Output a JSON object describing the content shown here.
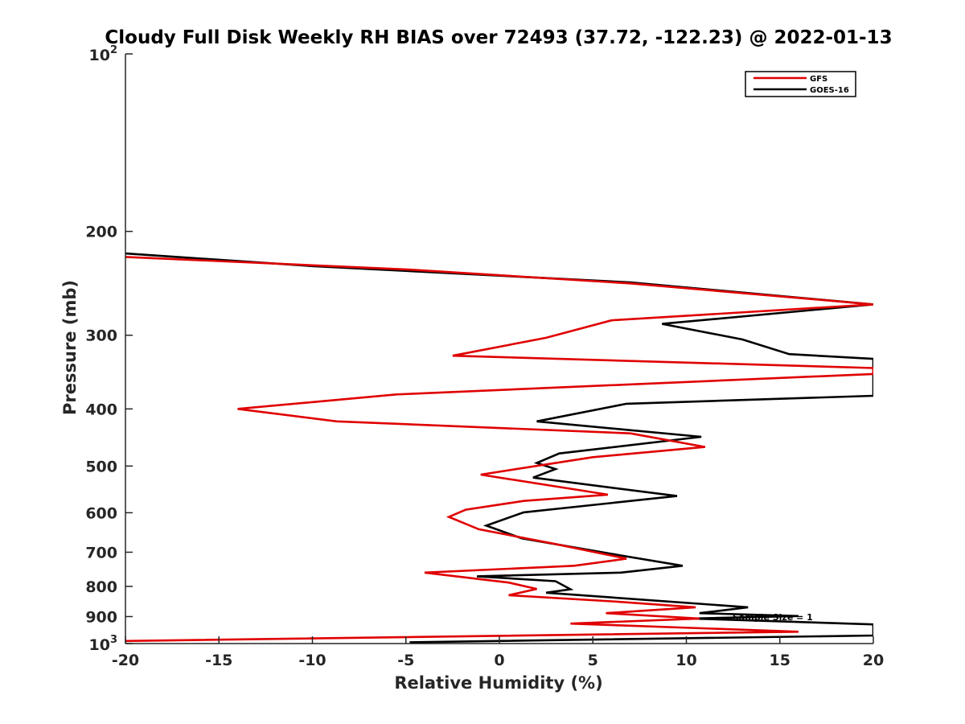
{
  "chart_data": {
    "type": "line",
    "title": "Cloudy Full Disk Weekly RH BIAS over 72493 (37.72, -122.23) @ 2022-01-13",
    "xlabel": "Relative Humidity (%)",
    "ylabel": "Pressure (mb)",
    "xlim": [
      -20,
      20
    ],
    "ylim": [
      100,
      1000
    ],
    "yscale": "log",
    "y_reversed": true,
    "grid": false,
    "legend_position": "top-right",
    "x_ticks": [
      "-20",
      "-15",
      "-10",
      "-5",
      "0",
      "5",
      "10",
      "15",
      "20"
    ],
    "y_ticks": [
      {
        "label": "200",
        "value": 200
      },
      {
        "label": "300",
        "value": 300
      },
      {
        "label": "400",
        "value": 400
      },
      {
        "label": "500",
        "value": 500
      },
      {
        "label": "600",
        "value": 600
      },
      {
        "label": "700",
        "value": 700
      },
      {
        "label": "800",
        "value": 800
      },
      {
        "label": "900",
        "value": 900
      }
    ],
    "y_tick_powers": [
      {
        "base": "10",
        "exp": "2",
        "value": 100
      },
      {
        "base": "10",
        "exp": "3",
        "value": 1000
      }
    ],
    "annotation": "Sample Size = 1",
    "series": [
      {
        "name": "GFS",
        "color": "#e00000",
        "points": [
          [
            -20,
            221
          ],
          [
            -5,
            232
          ],
          [
            7,
            245
          ],
          [
            20,
            266
          ],
          [
            6,
            283
          ],
          [
            2.5,
            303
          ],
          [
            -2.5,
            325
          ],
          [
            20,
            341
          ],
          [
            20,
            349
          ],
          [
            -5.5,
            378
          ],
          [
            -14,
            400
          ],
          [
            -8.7,
            420
          ],
          [
            7,
            440
          ],
          [
            11,
            464
          ],
          [
            5,
            483
          ],
          [
            -1,
            517
          ],
          [
            5.8,
            559
          ],
          [
            1.3,
            573
          ],
          [
            -1.8,
            593
          ],
          [
            -2.7,
            610
          ],
          [
            -1.1,
            640
          ],
          [
            3,
            678
          ],
          [
            6.8,
            718
          ],
          [
            4,
            738
          ],
          [
            -4,
            758
          ],
          [
            0.5,
            788
          ],
          [
            2,
            808
          ],
          [
            0.5,
            828
          ],
          [
            6,
            848
          ],
          [
            10.5,
            868
          ],
          [
            5.7,
            888
          ],
          [
            10.7,
            907
          ],
          [
            3.8,
            925
          ],
          [
            16,
            955
          ],
          [
            -20,
            990
          ]
        ]
      },
      {
        "name": "GOES-16",
        "color": "#000000",
        "points": [
          [
            -20,
            218
          ],
          [
            -10,
            229
          ],
          [
            7,
            244
          ],
          [
            20,
            266
          ],
          [
            8.7,
            287
          ],
          [
            13,
            305
          ],
          [
            15.5,
            323
          ],
          [
            20,
            329
          ],
          [
            20,
            380
          ],
          [
            6.8,
            392
          ],
          [
            2,
            420
          ],
          [
            10.8,
            446
          ],
          [
            3.2,
            476
          ],
          [
            2,
            494
          ],
          [
            3,
            506
          ],
          [
            1.8,
            523
          ],
          [
            9.5,
            562
          ],
          [
            1.3,
            599
          ],
          [
            -0.7,
            631
          ],
          [
            1.2,
            663
          ],
          [
            6.5,
            709
          ],
          [
            9.8,
            738
          ],
          [
            6.5,
            758
          ],
          [
            -1.2,
            769
          ],
          [
            3,
            784
          ],
          [
            3.8,
            809
          ],
          [
            2.5,
            820
          ],
          [
            13.3,
            868
          ],
          [
            10.7,
            888
          ],
          [
            16,
            898
          ],
          [
            10.3,
            907
          ],
          [
            20,
            928
          ],
          [
            20,
            969
          ],
          [
            -4.8,
            995
          ]
        ]
      }
    ]
  }
}
